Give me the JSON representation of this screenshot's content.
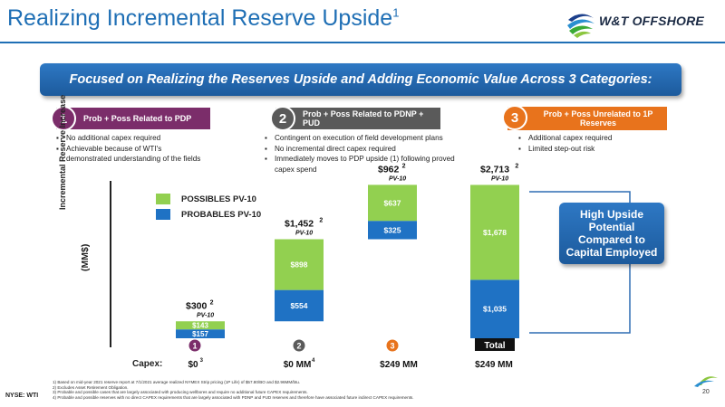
{
  "header": {
    "title": "Realizing Incremental Reserve Upside",
    "title_sup": "1",
    "logo_text": "W&T OFFSHORE"
  },
  "banner": {
    "text": "Focused on Realizing the Reserves Upside and Adding Economic Value Across 3 Categories:"
  },
  "categories": [
    {
      "number": "1",
      "label": "Prob + Poss Related to PDP",
      "color": "#7b2d6a",
      "bullets": [
        "No additional capex required",
        "Achievable because of WTI's demonstrated understanding of the fields"
      ]
    },
    {
      "number": "2",
      "label": "Prob + Poss Related to PDNP + PUD",
      "color": "#5a5a5a",
      "bullets": [
        "Contingent on execution of field development plans",
        "No incremental direct capex required",
        "Immediately moves to PDP upside (1) following proved capex spend"
      ]
    },
    {
      "number": "3",
      "label": "Prob + Poss Unrelated to 1P Reserves",
      "color": "#e8731c",
      "bullets": [
        "Additional capex required",
        "Limited step-out risk"
      ]
    }
  ],
  "chart_data": {
    "type": "bar",
    "stacked": true,
    "floating": true,
    "unit": "(MM$)",
    "ylabel": "Incremental Reserve Increase",
    "colors": {
      "possibles": "#92d050",
      "probables": "#1f72c4"
    },
    "legend": [
      "POSSIBLES PV-10",
      "PROBABLES PV-10"
    ],
    "bars": [
      {
        "marker": "1",
        "marker_color": "#7b2d6a",
        "base": 0,
        "probables": 157,
        "possibles": 143,
        "probables_label": "$157",
        "possibles_label": "$143",
        "total_label": "$300",
        "total_sup": "2",
        "sub": "PV-10",
        "capex": "$0",
        "capex_sup": "3"
      },
      {
        "marker": "2",
        "marker_color": "#5a5a5a",
        "base": 300,
        "probables": 554,
        "possibles": 898,
        "probables_label": "$554",
        "possibles_label": "$898",
        "total_label": "$1,452",
        "total_sup": "2",
        "sub": "PV-10",
        "capex": "$0 MM",
        "capex_sup": "4"
      },
      {
        "marker": "3",
        "marker_color": "#e8731c",
        "base": 1752,
        "probables": 325,
        "possibles": 637,
        "probables_label": "$325",
        "possibles_label": "$637",
        "total_label": "$962",
        "total_sup": "2",
        "sub": "PV-10",
        "capex": "$249 MM",
        "capex_sup": ""
      },
      {
        "marker": "Total",
        "marker_color": "#111111",
        "base": 0,
        "probables": 1035,
        "possibles": 1678,
        "probables_label": "$1,035",
        "possibles_label": "$1,678",
        "total_label": "$2,713",
        "total_sup": "2",
        "sub": "PV-10",
        "capex": "$249 MM",
        "capex_sup": ""
      }
    ],
    "capex_title": "Capex:"
  },
  "callout": {
    "text": "High Upside Potential Compared to Capital Employed"
  },
  "footnotes": [
    "1)   Based on mid-year 2021 reserve report at 7/1/2021  average realized NYMEX Strip pricing (1P Life) of $57.80/BO and $2.96MM/btu.",
    "2)   Excludes Asset Retirement Obligation.",
    "3)   Probable and possible cases that are largely associated with producing wellbores and require no additional future CAPEX requirements.",
    "4)   Probable and possible reserves with no direct CAPEX requirements that are largely associated with PDNP and PUD reserves and therefore have associated future indirect CAPEX requirements."
  ],
  "footer": {
    "nyse": "NYSE: WTI",
    "page": "20"
  }
}
